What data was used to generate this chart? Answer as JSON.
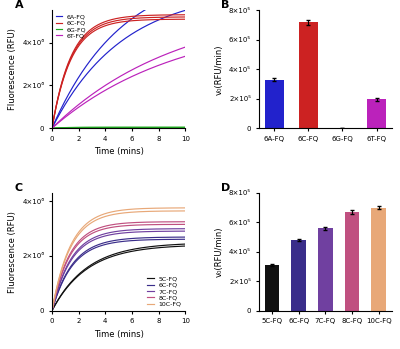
{
  "panel_A": {
    "xlabel": "Time (mins)",
    "ylabel": "Fluorescence (RFU)",
    "ylim": [
      0,
      5500000.0
    ],
    "xlim": [
      0,
      10
    ],
    "yticks": [
      0,
      2000000.0,
      4000000.0
    ],
    "ytick_labels": [
      "0",
      "2×10⁶",
      "4×10⁶"
    ],
    "lines": [
      {
        "label": "6A-FQ",
        "color": "#2222cc",
        "plateau": 7000000.0,
        "rate": 0.19,
        "spread": 0.15
      },
      {
        "label": "6C-FQ",
        "color": "#cc2222",
        "plateau": 5200000.0,
        "rate": 0.7,
        "spread": 0.04
      },
      {
        "label": "6G-FQ",
        "color": "#22aa22",
        "plateau": 40000.0,
        "rate": 1.0,
        "spread": 0.2
      },
      {
        "label": "6T-FQ",
        "color": "#bb22bb",
        "plateau": 5500000.0,
        "rate": 0.105,
        "spread": 0.12
      }
    ],
    "n_rep": [
      2,
      3,
      2,
      2
    ]
  },
  "panel_B": {
    "ylabel": "v₀(RFU/min)",
    "ylim": [
      0,
      800000.0
    ],
    "yticks": [
      0,
      200000.0,
      400000.0,
      600000.0,
      800000.0
    ],
    "ytick_labels": [
      "0",
      "2×10⁵",
      "4×10⁵",
      "6×10⁵",
      "8×10⁵"
    ],
    "categories": [
      "6A-FQ",
      "6C-FQ",
      "6G-FQ",
      "6T-FQ"
    ],
    "values": [
      330000.0,
      720000.0,
      800.0,
      195000.0
    ],
    "errors": [
      12000.0,
      18000.0,
      300.0,
      12000.0
    ],
    "colors": [
      "#2222cc",
      "#cc2222",
      "#22aa22",
      "#bb22bb"
    ]
  },
  "panel_C": {
    "xlabel": "Time (mins)",
    "ylabel": "Fluorescence (RFU)",
    "ylim": [
      0,
      4300000.0
    ],
    "xlim": [
      0,
      10
    ],
    "yticks": [
      0,
      2000000.0,
      4000000.0
    ],
    "ytick_labels": [
      "0",
      "2×10⁶",
      "4×10⁶"
    ],
    "lines": [
      {
        "label": "5C-FQ",
        "color": "#111111",
        "plateau": 2450000.0,
        "rate": 0.38,
        "spread": 0.03
      },
      {
        "label": "6C-FQ",
        "color": "#3a2d8a",
        "plateau": 2650000.0,
        "rate": 0.65,
        "spread": 0.03
      },
      {
        "label": "7C-FQ",
        "color": "#7040a0",
        "plateau": 2950000.0,
        "rate": 0.7,
        "spread": 0.03
      },
      {
        "label": "8C-FQ",
        "color": "#c05080",
        "plateau": 3200000.0,
        "rate": 0.75,
        "spread": 0.03
      },
      {
        "label": "10C-FQ",
        "color": "#e8a878",
        "plateau": 3700000.0,
        "rate": 0.72,
        "spread": 0.03
      }
    ],
    "n_rep": [
      2,
      2,
      2,
      2,
      2
    ]
  },
  "panel_D": {
    "ylabel": "v₀(RFU/min)",
    "ylim": [
      0,
      800000.0
    ],
    "yticks": [
      0,
      200000.0,
      400000.0,
      600000.0,
      800000.0
    ],
    "ytick_labels": [
      "0",
      "2×10⁵",
      "4×10⁵",
      "6×10⁵",
      "8×10⁵"
    ],
    "categories": [
      "5C-FQ",
      "6C-FQ",
      "7C-FQ",
      "8C-FQ",
      "10C-FQ"
    ],
    "values": [
      310000.0,
      480000.0,
      560000.0,
      670000.0,
      700000.0
    ],
    "errors": [
      8000.0,
      10000.0,
      10000.0,
      12000.0,
      10000.0
    ],
    "colors": [
      "#111111",
      "#3a2d8a",
      "#7040a0",
      "#c05080",
      "#e8a878"
    ]
  }
}
